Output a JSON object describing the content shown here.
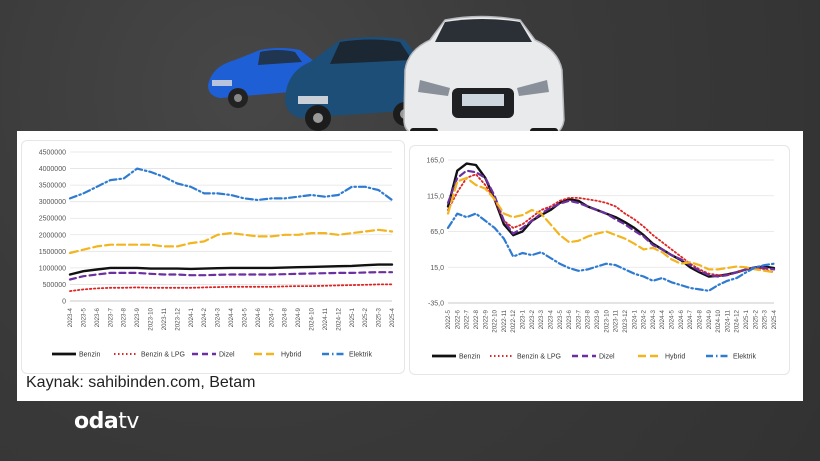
{
  "source_text": "Kaynak: sahibinden.com, Betam",
  "logo": {
    "part1": "oda",
    "part2": "tv"
  },
  "colors": {
    "Benzin": "#111111",
    "Benzin & LPG": "#e02424",
    "Dizel": "#6b2fa0",
    "Hybrid": "#f2b520",
    "Elektrik": "#2e7bd1"
  },
  "chart_data": [
    {
      "type": "line",
      "ylim": [
        0,
        4500000
      ],
      "y_ticks": [
        "0",
        "500000",
        "1000000",
        "1500000",
        "2000000",
        "2500000",
        "3000000",
        "3500000",
        "4000000",
        "4500000"
      ],
      "categories": [
        "2023-4",
        "2023-5",
        "2023-6",
        "2023-7",
        "2023-8",
        "2023-9",
        "2023-10",
        "2023-11",
        "2023-12",
        "2024-1",
        "2024-2",
        "2024-3",
        "2024-4",
        "2024-5",
        "2024-6",
        "2024-7",
        "2024-8",
        "2024-9",
        "2024-10",
        "2024-11",
        "2024-12",
        "2025-1",
        "2025-2",
        "2025-3",
        "2025-4"
      ],
      "x_tick_labels": [
        "2023-4",
        "2023-5",
        "2023-6",
        "2023-7",
        "2023-8",
        "2023-9",
        "2023-10",
        "2023-11",
        "2023-12",
        "2024-1",
        "2024-2",
        "2024-3",
        "2024-4",
        "2024-5",
        "2024-6",
        "2024-7",
        "2024-8",
        "2024-9",
        "2024-10",
        "2024-11",
        "2024-12",
        "2025-1",
        "2025-2",
        "2025-3",
        "2025-4"
      ],
      "legend_position": "bottom",
      "series": [
        {
          "name": "Benzin",
          "values": [
            800000,
            900000,
            950000,
            1000000,
            1000000,
            1000000,
            980000,
            980000,
            980000,
            970000,
            980000,
            990000,
            1000000,
            1000000,
            1000000,
            1000000,
            1010000,
            1020000,
            1030000,
            1040000,
            1050000,
            1060000,
            1080000,
            1100000,
            1100000
          ]
        },
        {
          "name": "Benzin & LPG",
          "values": [
            300000,
            350000,
            380000,
            400000,
            400000,
            410000,
            400000,
            400000,
            400000,
            400000,
            410000,
            420000,
            430000,
            430000,
            430000,
            430000,
            440000,
            450000,
            450000,
            460000,
            470000,
            480000,
            490000,
            500000,
            500000
          ]
        },
        {
          "name": "Dizel",
          "values": [
            650000,
            750000,
            800000,
            850000,
            850000,
            850000,
            820000,
            800000,
            800000,
            780000,
            780000,
            790000,
            800000,
            800000,
            800000,
            800000,
            810000,
            820000,
            830000,
            840000,
            850000,
            850000,
            860000,
            870000,
            870000
          ]
        },
        {
          "name": "Hybrid",
          "values": [
            1450000,
            1550000,
            1650000,
            1700000,
            1700000,
            1700000,
            1700000,
            1650000,
            1650000,
            1750000,
            1800000,
            2000000,
            2050000,
            2000000,
            1950000,
            1950000,
            2000000,
            2000000,
            2050000,
            2050000,
            2000000,
            2050000,
            2100000,
            2150000,
            2100000
          ]
        },
        {
          "name": "Elektrik",
          "values": [
            3100000,
            3250000,
            3450000,
            3650000,
            3700000,
            4000000,
            3900000,
            3750000,
            3550000,
            3450000,
            3250000,
            3250000,
            3200000,
            3100000,
            3050000,
            3100000,
            3100000,
            3150000,
            3200000,
            3150000,
            3200000,
            3450000,
            3450000,
            3350000,
            3050000
          ]
        }
      ]
    },
    {
      "type": "line",
      "ylim": [
        -35,
        165
      ],
      "y_ticks": [
        "165,0",
        "115,0",
        "65,0",
        "15,0",
        "-35,0"
      ],
      "x_tick_labels": [
        "2022-5",
        "2022-6",
        "2022-7",
        "2022-8",
        "2022-9",
        "2022-10",
        "2022-11",
        "2022-12",
        "2023-1",
        "2023-2",
        "2023-3",
        "2023-4",
        "2023-5",
        "2023-6",
        "2023-7",
        "2023-8",
        "2023-9",
        "2023-10",
        "2023-11",
        "2023-12",
        "2024-1",
        "2024-2",
        "2024-3",
        "2024-4",
        "2024-5",
        "2024-6",
        "2024-7",
        "2024-8",
        "2024-9",
        "2024-10",
        "2024-11",
        "2024-12",
        "2025-1",
        "2025-2",
        "2025-3",
        "2025-4"
      ],
      "legend_position": "bottom",
      "series": [
        {
          "name": "Benzin",
          "values": [
            100,
            150,
            160,
            158,
            140,
            110,
            75,
            60,
            65,
            80,
            88,
            95,
            105,
            110,
            108,
            100,
            95,
            90,
            85,
            78,
            70,
            60,
            48,
            40,
            32,
            25,
            15,
            8,
            2,
            3,
            5,
            8,
            12,
            15,
            16,
            14
          ]
        },
        {
          "name": "Benzin & LPG",
          "values": [
            95,
            120,
            140,
            145,
            130,
            110,
            80,
            70,
            75,
            85,
            95,
            100,
            108,
            112,
            112,
            110,
            108,
            105,
            100,
            90,
            82,
            72,
            60,
            50,
            40,
            30,
            20,
            12,
            6,
            4,
            4,
            8,
            12,
            14,
            12,
            8
          ]
        },
        {
          "name": "Dizel",
          "values": [
            105,
            140,
            150,
            148,
            140,
            115,
            80,
            62,
            70,
            80,
            90,
            98,
            104,
            108,
            105,
            100,
            95,
            90,
            82,
            75,
            66,
            58,
            46,
            40,
            32,
            26,
            18,
            10,
            4,
            2,
            4,
            8,
            12,
            15,
            14,
            12
          ]
        },
        {
          "name": "Hybrid",
          "values": [
            90,
            135,
            140,
            130,
            125,
            110,
            90,
            85,
            88,
            95,
            90,
            75,
            60,
            50,
            52,
            58,
            62,
            65,
            60,
            55,
            48,
            40,
            42,
            36,
            26,
            20,
            22,
            18,
            12,
            12,
            14,
            16,
            15,
            12,
            10,
            8
          ]
        },
        {
          "name": "Elektrik",
          "values": [
            70,
            90,
            85,
            90,
            80,
            70,
            55,
            30,
            35,
            32,
            36,
            28,
            20,
            14,
            10,
            12,
            16,
            20,
            18,
            12,
            6,
            2,
            -4,
            0,
            -6,
            -10,
            -14,
            -16,
            -18,
            -10,
            -4,
            0,
            8,
            15,
            18,
            20
          ]
        }
      ]
    }
  ]
}
